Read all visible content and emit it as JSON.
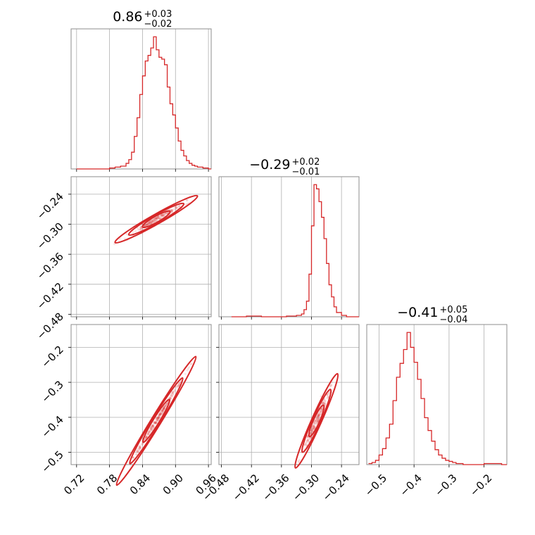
{
  "chart_data": [
    {
      "type": "histogram",
      "panel": "diag-1",
      "title": {
        "main": "0.86",
        "plus": "+0.03",
        "minus": "−0.02"
      },
      "xlim": [
        0.71,
        0.965
      ],
      "x": [
        0.72,
        0.73,
        0.74,
        0.75,
        0.76,
        0.77,
        0.78,
        0.79,
        0.8,
        0.81,
        0.815,
        0.82,
        0.825,
        0.83,
        0.835,
        0.84,
        0.845,
        0.85,
        0.855,
        0.86,
        0.865,
        0.87,
        0.875,
        0.88,
        0.885,
        0.89,
        0.895,
        0.9,
        0.905,
        0.91,
        0.915,
        0.92,
        0.925,
        0.93,
        0.935,
        0.94,
        0.95,
        0.96
      ],
      "y": [
        0,
        0,
        0,
        0,
        0,
        0,
        1,
        2,
        3,
        6,
        10,
        18,
        35,
        55,
        80,
        100,
        116,
        122,
        130,
        142,
        128,
        120,
        118,
        112,
        88,
        70,
        58,
        44,
        30,
        20,
        14,
        9,
        6,
        4,
        3,
        2,
        1,
        0
      ],
      "xticks": [
        0.72,
        0.78,
        0.84,
        0.9,
        0.96
      ],
      "xtick_labels": [
        "0.72",
        "0.78",
        "0.84",
        "0.90",
        "0.96"
      ]
    },
    {
      "type": "histogram",
      "panel": "diag-2",
      "title": {
        "main": "−0.29",
        "plus": "+0.02",
        "minus": "−0.01"
      },
      "xlim": [
        -0.485,
        -0.205
      ],
      "x": [
        -0.46,
        -0.43,
        -0.4,
        -0.37,
        -0.35,
        -0.33,
        -0.32,
        -0.315,
        -0.31,
        -0.305,
        -0.3,
        -0.295,
        -0.29,
        -0.285,
        -0.28,
        -0.275,
        -0.27,
        -0.265,
        -0.26,
        -0.255,
        -0.25,
        -0.24,
        -0.23
      ],
      "y": [
        0,
        1,
        0,
        0,
        1,
        2,
        4,
        10,
        22,
        60,
        128,
        186,
        180,
        162,
        140,
        110,
        75,
        45,
        28,
        14,
        6,
        2,
        0
      ],
      "xticks": [
        -0.48,
        -0.42,
        -0.36,
        -0.3,
        -0.24
      ],
      "xtick_labels": [
        "−0.48",
        "−0.42",
        "−0.36",
        "−0.30",
        "−0.24"
      ]
    },
    {
      "type": "histogram",
      "panel": "diag-3",
      "title": {
        "main": "−0.41",
        "plus": "+0.05",
        "minus": "−0.04"
      },
      "xlim": [
        -0.535,
        -0.135
      ],
      "x": [
        -0.53,
        -0.52,
        -0.51,
        -0.5,
        -0.49,
        -0.48,
        -0.47,
        -0.46,
        -0.45,
        -0.44,
        -0.43,
        -0.42,
        -0.41,
        -0.4,
        -0.39,
        -0.38,
        -0.37,
        -0.36,
        -0.35,
        -0.34,
        -0.33,
        -0.32,
        -0.31,
        -0.3,
        -0.29,
        -0.28,
        -0.27,
        -0.26,
        -0.25,
        -0.2,
        -0.15
      ],
      "y": [
        1,
        2,
        4,
        9,
        15,
        25,
        38,
        60,
        82,
        95,
        108,
        124,
        110,
        96,
        80,
        62,
        44,
        32,
        22,
        14,
        9,
        6,
        4,
        3,
        2,
        1,
        1,
        0,
        0,
        1,
        0
      ],
      "xticks": [
        -0.5,
        -0.4,
        -0.3,
        -0.2
      ],
      "xtick_labels": [
        "−0.5",
        "−0.4",
        "−0.3",
        "−0.2"
      ]
    },
    {
      "type": "scatter",
      "panel": "pair-2-1",
      "description_series": "samples of p1 vs p2 with density contours",
      "xlim": [
        0.71,
        0.965
      ],
      "ylim": [
        -0.485,
        -0.205
      ],
      "center": [
        0.865,
        -0.29
      ],
      "slope": 0.62,
      "yticks": [
        -0.24,
        -0.3,
        -0.36,
        -0.42,
        -0.48
      ],
      "ytick_labels": [
        "−0.24",
        "−0.30",
        "−0.36",
        "−0.42",
        "−0.48"
      ]
    },
    {
      "type": "scatter",
      "panel": "pair-3-1",
      "xlim": [
        0.71,
        0.965
      ],
      "ylim": [
        -0.535,
        -0.135
      ],
      "center": [
        0.865,
        -0.41
      ],
      "slope": 2.55,
      "yticks": [
        -0.2,
        -0.3,
        -0.4,
        -0.5
      ],
      "ytick_labels": [
        "−0.2",
        "−0.3",
        "−0.4",
        "−0.5"
      ],
      "xticks": [
        0.72,
        0.78,
        0.84,
        0.9,
        0.96
      ],
      "xtick_labels": [
        "0.72",
        "0.78",
        "0.84",
        "0.90",
        "0.96"
      ]
    },
    {
      "type": "scatter",
      "panel": "pair-3-2",
      "xlim": [
        -0.485,
        -0.205
      ],
      "ylim": [
        -0.535,
        -0.135
      ],
      "center": [
        -0.29,
        -0.41
      ],
      "slope": 3.2,
      "xticks": [
        -0.48,
        -0.42,
        -0.36,
        -0.3,
        -0.24
      ],
      "xtick_labels": [
        "−0.48",
        "−0.42",
        "−0.36",
        "−0.30",
        "−0.24"
      ]
    }
  ],
  "colors": {
    "series": "#d62728",
    "grid": "#b0b0b0",
    "frame": "#8c8c8c"
  }
}
